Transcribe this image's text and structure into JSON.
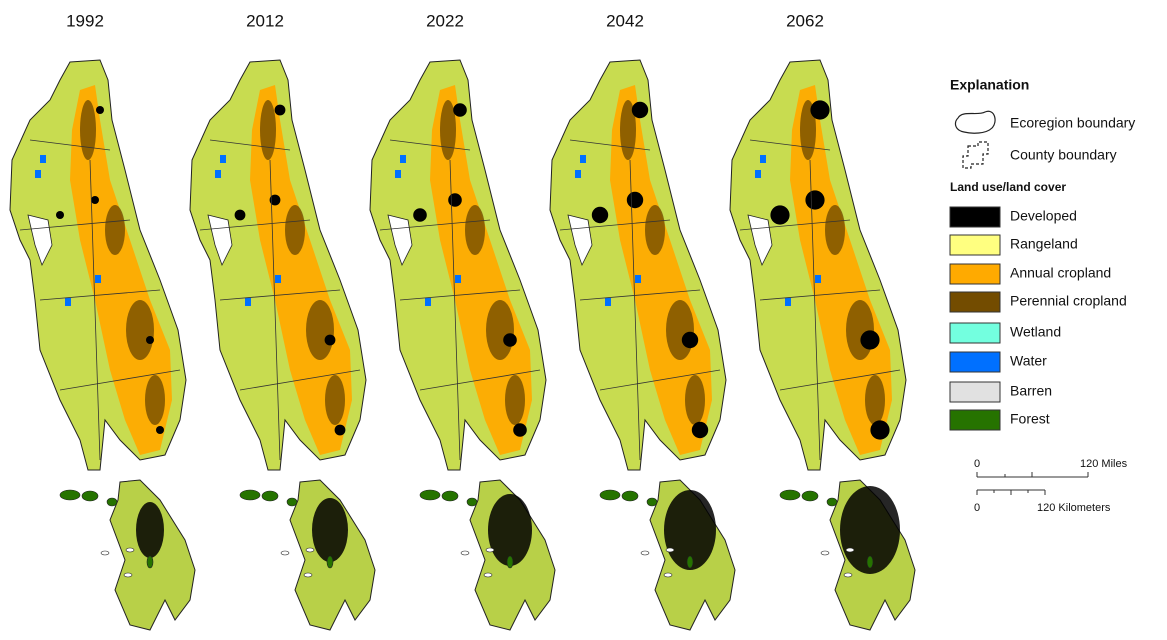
{
  "panels": [
    {
      "year": "1992"
    },
    {
      "year": "2012"
    },
    {
      "year": "2022"
    },
    {
      "year": "2042"
    },
    {
      "year": "2062"
    }
  ],
  "legend": {
    "title": "Explanation",
    "boundaries": [
      {
        "label": "Ecoregion boundary"
      },
      {
        "label": "County boundary"
      }
    ],
    "section_title": "Land use/land cover",
    "classes": [
      {
        "label": "Developed",
        "color": "#000000"
      },
      {
        "label": "Rangeland",
        "color": "#ffff80"
      },
      {
        "label": "Annual cropland",
        "color": "#ffaa00"
      },
      {
        "label": "Perennial cropland",
        "color": "#734c00"
      },
      {
        "label": "Wetland",
        "color": "#73ffdf"
      },
      {
        "label": "Water",
        "color": "#0070ff"
      },
      {
        "label": "Barren",
        "color": "#e1e1e1"
      },
      {
        "label": "Forest",
        "color": "#267300"
      }
    ]
  },
  "scale_bar": {
    "miles": {
      "start": "0",
      "end": "120 Miles"
    },
    "kilometers": {
      "start": "0",
      "end": "120 Kilometers"
    }
  }
}
